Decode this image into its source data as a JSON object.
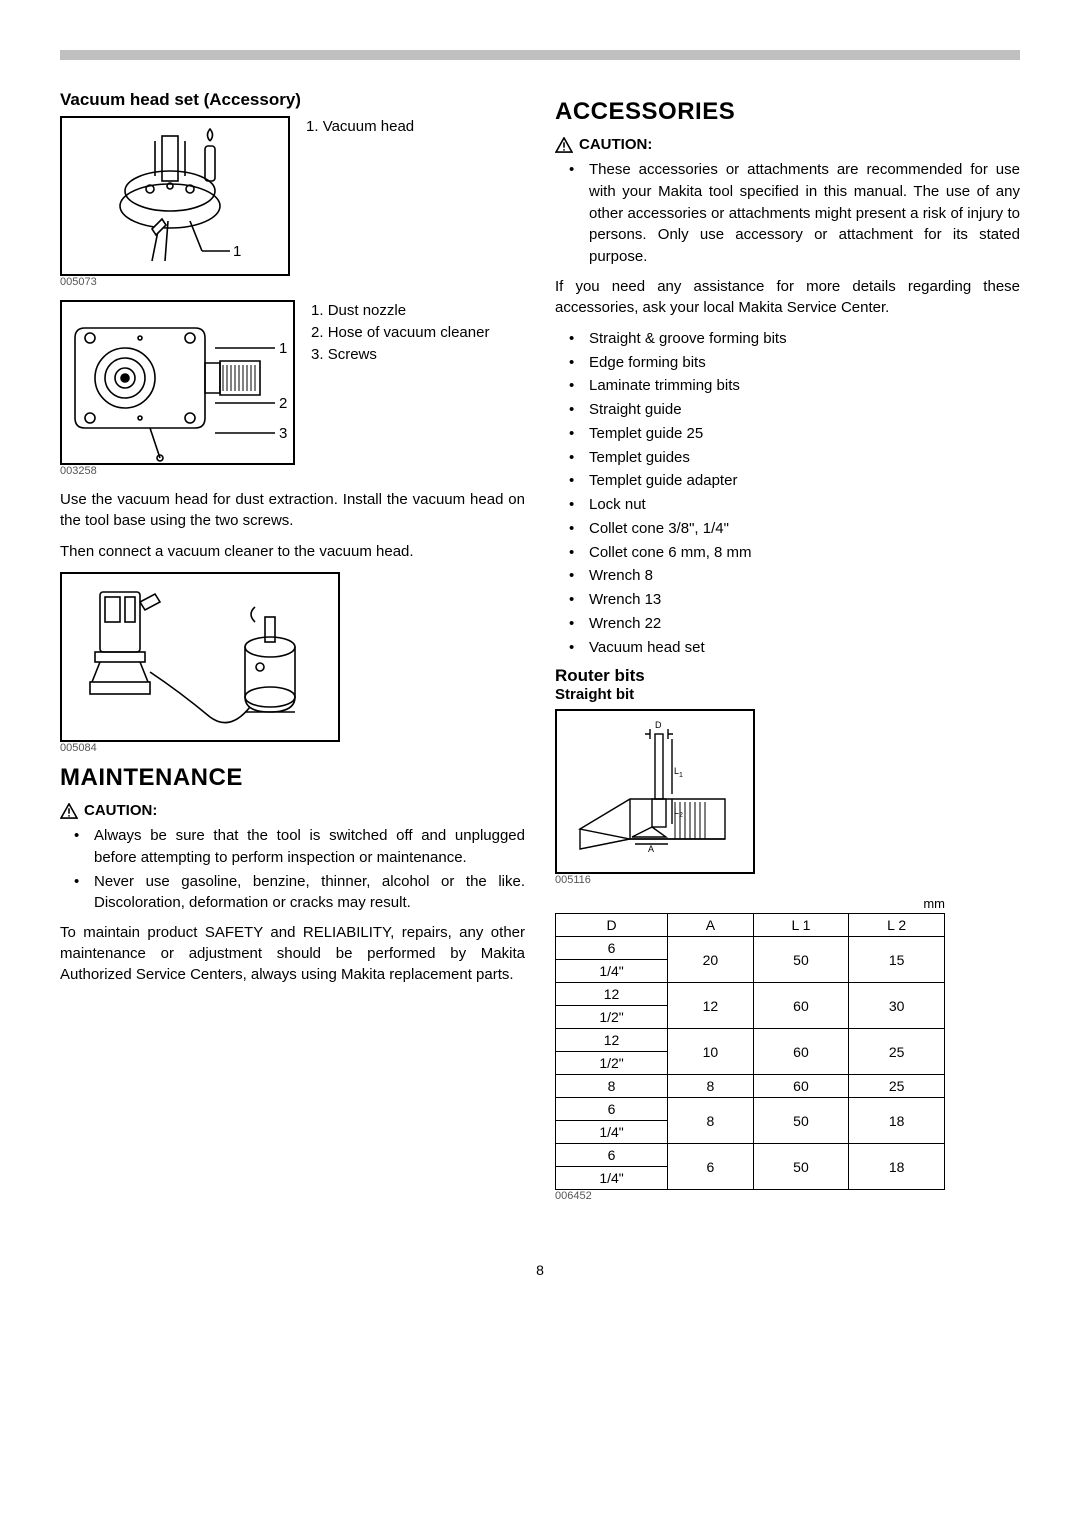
{
  "page_number": "8",
  "left": {
    "section_title": "Vacuum head set (Accessory)",
    "fig1": {
      "id": "005073",
      "legend": [
        "Vacuum head"
      ]
    },
    "fig2": {
      "id": "003258",
      "legend": [
        "Dust nozzle",
        "Hose of vacuum cleaner",
        "Screws"
      ]
    },
    "para1": "Use the vacuum head for dust extraction. Install the vacuum head on the tool base using the two screws.",
    "para2": "Then connect a vacuum cleaner to the vacuum head.",
    "fig3": {
      "id": "005084"
    },
    "maintenance_title": "MAINTENANCE",
    "caution_label": "CAUTION:",
    "caution_items": [
      "Always be sure that the tool is switched off and unplugged before attempting to perform inspection or maintenance.",
      "Never use gasoline, benzine, thinner, alcohol or the like. Discoloration, deformation or cracks may result."
    ],
    "maint_para": "To maintain product SAFETY and RELIABILITY, repairs, any other maintenance or adjustment should be performed by Makita Authorized Service Centers, always using Makita replacement parts."
  },
  "right": {
    "accessories_title": "ACCESSORIES",
    "caution_label": "CAUTION:",
    "caution_item": "These accessories or attachments are recommended for use with your Makita tool specified in this manual. The use of any other accessories or attachments might present a risk of injury to persons. Only use accessory or attachment for its stated purpose.",
    "assist_para": "If you need any assistance for more details regarding these accessories, ask your local Makita Service Center.",
    "accessory_list": [
      "Straight & groove forming bits",
      "Edge forming bits",
      "Laminate trimming bits",
      "Straight guide",
      "Templet guide 25",
      "Templet guides",
      "Templet guide adapter",
      "Lock nut",
      "Collet cone 3/8\", 1/4\"",
      "Collet cone 6 mm, 8 mm",
      "Wrench 8",
      "Wrench 13",
      "Wrench 22",
      "Vacuum head set"
    ],
    "router_bits_title": "Router bits",
    "straight_bit_title": "Straight bit",
    "fig4": {
      "id": "005116"
    },
    "table": {
      "unit": "mm",
      "headers": [
        "D",
        "A",
        "L 1",
        "L 2"
      ],
      "rows": [
        [
          "6",
          "20",
          "50",
          "15",
          2
        ],
        [
          "1/4\"",
          null,
          null,
          null,
          0
        ],
        [
          "12",
          "12",
          "60",
          "30",
          2
        ],
        [
          "1/2\"",
          null,
          null,
          null,
          0
        ],
        [
          "12",
          "10",
          "60",
          "25",
          2
        ],
        [
          "1/2\"",
          null,
          null,
          null,
          0
        ],
        [
          "8",
          "8",
          "60",
          "25",
          1
        ],
        [
          "6",
          "8",
          "50",
          "18",
          2
        ],
        [
          "1/4\"",
          null,
          null,
          null,
          0
        ],
        [
          "6",
          "6",
          "50",
          "18",
          2
        ],
        [
          "1/4\"",
          null,
          null,
          null,
          0
        ]
      ],
      "fig_id": "006452"
    }
  }
}
